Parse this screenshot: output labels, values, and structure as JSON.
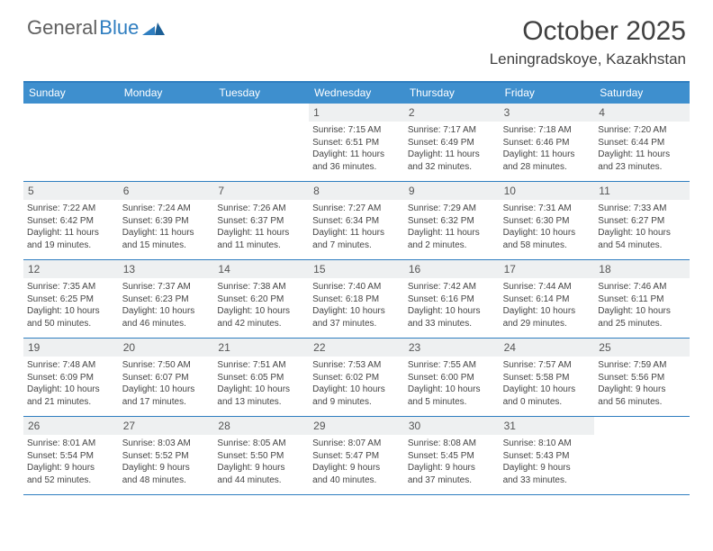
{
  "brand": {
    "part1": "General",
    "part2": "Blue"
  },
  "title": "October 2025",
  "location": "Leningradskoye, Kazakhstan",
  "colors": {
    "accent": "#2f7ec0",
    "header_bg": "#3e8fce",
    "header_text": "#ffffff",
    "day_stripe": "#eef0f1",
    "text": "#404040"
  },
  "day_names": [
    "Sunday",
    "Monday",
    "Tuesday",
    "Wednesday",
    "Thursday",
    "Friday",
    "Saturday"
  ],
  "weeks": [
    [
      {
        "n": ""
      },
      {
        "n": ""
      },
      {
        "n": ""
      },
      {
        "n": "1",
        "sr": "Sunrise: 7:15 AM",
        "ss": "Sunset: 6:51 PM",
        "d1": "Daylight: 11 hours",
        "d2": "and 36 minutes."
      },
      {
        "n": "2",
        "sr": "Sunrise: 7:17 AM",
        "ss": "Sunset: 6:49 PM",
        "d1": "Daylight: 11 hours",
        "d2": "and 32 minutes."
      },
      {
        "n": "3",
        "sr": "Sunrise: 7:18 AM",
        "ss": "Sunset: 6:46 PM",
        "d1": "Daylight: 11 hours",
        "d2": "and 28 minutes."
      },
      {
        "n": "4",
        "sr": "Sunrise: 7:20 AM",
        "ss": "Sunset: 6:44 PM",
        "d1": "Daylight: 11 hours",
        "d2": "and 23 minutes."
      }
    ],
    [
      {
        "n": "5",
        "sr": "Sunrise: 7:22 AM",
        "ss": "Sunset: 6:42 PM",
        "d1": "Daylight: 11 hours",
        "d2": "and 19 minutes."
      },
      {
        "n": "6",
        "sr": "Sunrise: 7:24 AM",
        "ss": "Sunset: 6:39 PM",
        "d1": "Daylight: 11 hours",
        "d2": "and 15 minutes."
      },
      {
        "n": "7",
        "sr": "Sunrise: 7:26 AM",
        "ss": "Sunset: 6:37 PM",
        "d1": "Daylight: 11 hours",
        "d2": "and 11 minutes."
      },
      {
        "n": "8",
        "sr": "Sunrise: 7:27 AM",
        "ss": "Sunset: 6:34 PM",
        "d1": "Daylight: 11 hours",
        "d2": "and 7 minutes."
      },
      {
        "n": "9",
        "sr": "Sunrise: 7:29 AM",
        "ss": "Sunset: 6:32 PM",
        "d1": "Daylight: 11 hours",
        "d2": "and 2 minutes."
      },
      {
        "n": "10",
        "sr": "Sunrise: 7:31 AM",
        "ss": "Sunset: 6:30 PM",
        "d1": "Daylight: 10 hours",
        "d2": "and 58 minutes."
      },
      {
        "n": "11",
        "sr": "Sunrise: 7:33 AM",
        "ss": "Sunset: 6:27 PM",
        "d1": "Daylight: 10 hours",
        "d2": "and 54 minutes."
      }
    ],
    [
      {
        "n": "12",
        "sr": "Sunrise: 7:35 AM",
        "ss": "Sunset: 6:25 PM",
        "d1": "Daylight: 10 hours",
        "d2": "and 50 minutes."
      },
      {
        "n": "13",
        "sr": "Sunrise: 7:37 AM",
        "ss": "Sunset: 6:23 PM",
        "d1": "Daylight: 10 hours",
        "d2": "and 46 minutes."
      },
      {
        "n": "14",
        "sr": "Sunrise: 7:38 AM",
        "ss": "Sunset: 6:20 PM",
        "d1": "Daylight: 10 hours",
        "d2": "and 42 minutes."
      },
      {
        "n": "15",
        "sr": "Sunrise: 7:40 AM",
        "ss": "Sunset: 6:18 PM",
        "d1": "Daylight: 10 hours",
        "d2": "and 37 minutes."
      },
      {
        "n": "16",
        "sr": "Sunrise: 7:42 AM",
        "ss": "Sunset: 6:16 PM",
        "d1": "Daylight: 10 hours",
        "d2": "and 33 minutes."
      },
      {
        "n": "17",
        "sr": "Sunrise: 7:44 AM",
        "ss": "Sunset: 6:14 PM",
        "d1": "Daylight: 10 hours",
        "d2": "and 29 minutes."
      },
      {
        "n": "18",
        "sr": "Sunrise: 7:46 AM",
        "ss": "Sunset: 6:11 PM",
        "d1": "Daylight: 10 hours",
        "d2": "and 25 minutes."
      }
    ],
    [
      {
        "n": "19",
        "sr": "Sunrise: 7:48 AM",
        "ss": "Sunset: 6:09 PM",
        "d1": "Daylight: 10 hours",
        "d2": "and 21 minutes."
      },
      {
        "n": "20",
        "sr": "Sunrise: 7:50 AM",
        "ss": "Sunset: 6:07 PM",
        "d1": "Daylight: 10 hours",
        "d2": "and 17 minutes."
      },
      {
        "n": "21",
        "sr": "Sunrise: 7:51 AM",
        "ss": "Sunset: 6:05 PM",
        "d1": "Daylight: 10 hours",
        "d2": "and 13 minutes."
      },
      {
        "n": "22",
        "sr": "Sunrise: 7:53 AM",
        "ss": "Sunset: 6:02 PM",
        "d1": "Daylight: 10 hours",
        "d2": "and 9 minutes."
      },
      {
        "n": "23",
        "sr": "Sunrise: 7:55 AM",
        "ss": "Sunset: 6:00 PM",
        "d1": "Daylight: 10 hours",
        "d2": "and 5 minutes."
      },
      {
        "n": "24",
        "sr": "Sunrise: 7:57 AM",
        "ss": "Sunset: 5:58 PM",
        "d1": "Daylight: 10 hours",
        "d2": "and 0 minutes."
      },
      {
        "n": "25",
        "sr": "Sunrise: 7:59 AM",
        "ss": "Sunset: 5:56 PM",
        "d1": "Daylight: 9 hours",
        "d2": "and 56 minutes."
      }
    ],
    [
      {
        "n": "26",
        "sr": "Sunrise: 8:01 AM",
        "ss": "Sunset: 5:54 PM",
        "d1": "Daylight: 9 hours",
        "d2": "and 52 minutes."
      },
      {
        "n": "27",
        "sr": "Sunrise: 8:03 AM",
        "ss": "Sunset: 5:52 PM",
        "d1": "Daylight: 9 hours",
        "d2": "and 48 minutes."
      },
      {
        "n": "28",
        "sr": "Sunrise: 8:05 AM",
        "ss": "Sunset: 5:50 PM",
        "d1": "Daylight: 9 hours",
        "d2": "and 44 minutes."
      },
      {
        "n": "29",
        "sr": "Sunrise: 8:07 AM",
        "ss": "Sunset: 5:47 PM",
        "d1": "Daylight: 9 hours",
        "d2": "and 40 minutes."
      },
      {
        "n": "30",
        "sr": "Sunrise: 8:08 AM",
        "ss": "Sunset: 5:45 PM",
        "d1": "Daylight: 9 hours",
        "d2": "and 37 minutes."
      },
      {
        "n": "31",
        "sr": "Sunrise: 8:10 AM",
        "ss": "Sunset: 5:43 PM",
        "d1": "Daylight: 9 hours",
        "d2": "and 33 minutes."
      },
      {
        "n": ""
      }
    ]
  ]
}
